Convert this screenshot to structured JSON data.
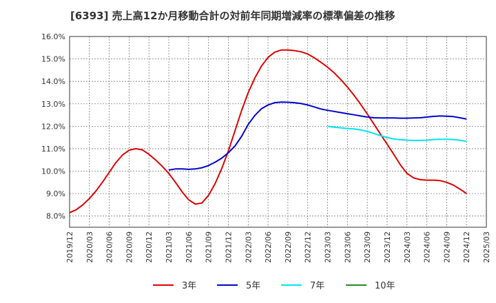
{
  "chart_data": {
    "type": "line",
    "title": "[6393]  売上高12か月移動合計の対前年同期増減率の標準偏差の推移",
    "xlabel": "",
    "ylabel": "",
    "ylim": [
      7.5,
      16.0
    ],
    "yticks": [
      8.0,
      9.0,
      10.0,
      11.0,
      12.0,
      13.0,
      14.0,
      15.0,
      16.0
    ],
    "ytick_labels": [
      "8.0%",
      "9.0%",
      "10.0%",
      "11.0%",
      "12.0%",
      "13.0%",
      "14.0%",
      "15.0%",
      "16.0%"
    ],
    "xticks": [
      "2019/12",
      "2020/03",
      "2020/06",
      "2020/09",
      "2020/12",
      "2021/03",
      "2021/06",
      "2021/09",
      "2021/12",
      "2022/03",
      "2022/06",
      "2022/09",
      "2022/12",
      "2023/03",
      "2023/06",
      "2023/09",
      "2023/12",
      "2024/03",
      "2024/06",
      "2024/09",
      "2024/12",
      "2025/03"
    ],
    "grid": true,
    "legend_position": "bottom",
    "series": [
      {
        "name": "3年",
        "color": "#dd0000",
        "x": [
          "2019/12",
          "2020/01",
          "2020/02",
          "2020/03",
          "2020/04",
          "2020/05",
          "2020/06",
          "2020/07",
          "2020/08",
          "2020/09",
          "2020/10",
          "2020/11",
          "2020/12",
          "2021/01",
          "2021/02",
          "2021/03",
          "2021/04",
          "2021/05",
          "2021/06",
          "2021/07",
          "2021/08",
          "2021/09",
          "2021/10",
          "2021/11",
          "2021/12",
          "2022/01",
          "2022/02",
          "2022/03",
          "2022/04",
          "2022/05",
          "2022/06",
          "2022/07",
          "2022/08",
          "2022/09",
          "2022/10",
          "2022/11",
          "2022/12",
          "2023/01",
          "2023/02",
          "2023/03",
          "2023/04",
          "2023/05",
          "2023/06",
          "2023/07",
          "2023/08",
          "2023/09",
          "2023/10",
          "2023/11",
          "2023/12",
          "2024/01",
          "2024/02",
          "2024/03",
          "2024/04",
          "2024/05",
          "2024/06",
          "2024/07",
          "2024/08",
          "2024/09",
          "2024/10",
          "2024/11",
          "2024/12"
        ],
        "values": [
          8.15,
          8.28,
          8.5,
          8.78,
          9.12,
          9.52,
          9.95,
          10.38,
          10.72,
          10.93,
          11.0,
          10.95,
          10.75,
          10.5,
          10.22,
          9.9,
          9.5,
          9.08,
          8.72,
          8.53,
          8.58,
          8.92,
          9.45,
          10.12,
          10.9,
          11.8,
          12.7,
          13.5,
          14.15,
          14.68,
          15.07,
          15.3,
          15.4,
          15.4,
          15.37,
          15.32,
          15.22,
          15.05,
          14.85,
          14.63,
          14.38,
          14.08,
          13.75,
          13.38,
          12.98,
          12.55,
          12.1,
          11.65,
          11.2,
          10.75,
          10.28,
          9.9,
          9.7,
          9.62,
          9.6,
          9.6,
          9.58,
          9.5,
          9.38,
          9.2,
          9.0
        ]
      },
      {
        "name": "5年",
        "color": "#0000cc",
        "x": [
          "2021/03",
          "2021/04",
          "2021/05",
          "2021/06",
          "2021/07",
          "2021/08",
          "2021/09",
          "2021/10",
          "2021/11",
          "2021/12",
          "2022/01",
          "2022/02",
          "2022/03",
          "2022/04",
          "2022/05",
          "2022/06",
          "2022/07",
          "2022/08",
          "2022/09",
          "2022/10",
          "2022/11",
          "2022/12",
          "2023/01",
          "2023/02",
          "2023/03",
          "2023/04",
          "2023/05",
          "2023/06",
          "2023/07",
          "2023/08",
          "2023/09",
          "2023/10",
          "2023/11",
          "2023/12",
          "2024/01",
          "2024/02",
          "2024/03",
          "2024/04",
          "2024/05",
          "2024/06",
          "2024/07",
          "2024/08",
          "2024/09",
          "2024/10",
          "2024/11",
          "2024/12"
        ],
        "values": [
          10.05,
          10.1,
          10.1,
          10.08,
          10.1,
          10.15,
          10.25,
          10.4,
          10.58,
          10.82,
          11.12,
          11.55,
          12.08,
          12.48,
          12.78,
          12.95,
          13.05,
          13.08,
          13.07,
          13.05,
          13.01,
          12.95,
          12.86,
          12.77,
          12.71,
          12.66,
          12.61,
          12.56,
          12.51,
          12.46,
          12.41,
          12.38,
          12.37,
          12.37,
          12.37,
          12.36,
          12.36,
          12.37,
          12.38,
          12.41,
          12.44,
          12.46,
          12.45,
          12.43,
          12.38,
          12.32
        ]
      },
      {
        "name": "7年",
        "color": "#00e5ee",
        "x": [
          "2023/03",
          "2023/04",
          "2023/05",
          "2023/06",
          "2023/07",
          "2023/08",
          "2023/09",
          "2023/10",
          "2023/11",
          "2023/12",
          "2024/01",
          "2024/02",
          "2024/03",
          "2024/04",
          "2024/05",
          "2024/06",
          "2024/07",
          "2024/08",
          "2024/09",
          "2024/10",
          "2024/11",
          "2024/12"
        ],
        "values": [
          12.0,
          11.96,
          11.93,
          11.9,
          11.88,
          11.84,
          11.77,
          11.68,
          11.58,
          11.5,
          11.43,
          11.4,
          11.38,
          11.37,
          11.37,
          11.38,
          11.41,
          11.42,
          11.42,
          11.41,
          11.38,
          11.33
        ]
      },
      {
        "name": "10年",
        "color": "#228b22",
        "x": [],
        "values": []
      }
    ]
  }
}
